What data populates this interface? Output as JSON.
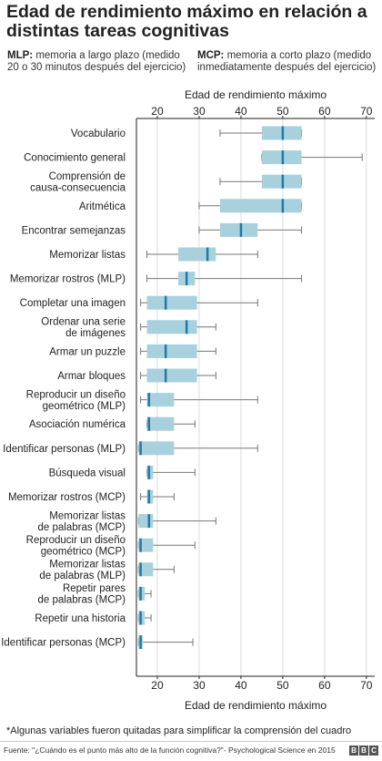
{
  "title": "Edad de rendimiento máximo en relación a distintas tareas cognitivas",
  "legend": {
    "mlp_key": "MLP:",
    "mlp_text": "memoria a largo plazo (medido 20 o 30 minutos después del ejercicio)",
    "mcp_key": "MCP:",
    "mcp_text": "memoria a corto plazo (medido inmediatamente después del ejercicio)"
  },
  "footnote": "*Algunas variables fueron quitadas para simplificar la comprensión del cuadro",
  "source": "Fuente: \"¿Cuándo es el punto más alto de la función cognitiva?\"- Psychological Science en 2015",
  "brand_letters": [
    "B",
    "B",
    "C"
  ],
  "colors": {
    "box_fill": "#a8d1dd",
    "median": "#1f7aa8",
    "whisker": "#777777",
    "grid": "#dddddd",
    "axis": "#222222"
  },
  "chart_data": {
    "type": "boxplot",
    "orientation": "horizontal",
    "xlabel": "Edad de rendimiento máximo",
    "xlim": [
      15,
      72
    ],
    "xticks": [
      20,
      30,
      40,
      50,
      60,
      70
    ],
    "xaxis_top": true,
    "xaxis_bottom": true,
    "grid": true,
    "categories": [
      {
        "label": [
          "Vocabulario"
        ],
        "whisker_low": 35,
        "q1": 45,
        "median": 50,
        "q3": 54.5,
        "whisker_high": 54.5
      },
      {
        "label": [
          "Conocimiento general"
        ],
        "whisker_low": 45,
        "q1": 45,
        "median": 50,
        "q3": 54.5,
        "whisker_high": 69
      },
      {
        "label": [
          "Comprensión de",
          "causa-consecuencia"
        ],
        "whisker_low": 35,
        "q1": 45,
        "median": 50,
        "q3": 54.5,
        "whisker_high": 54.5
      },
      {
        "label": [
          "Aritmética"
        ],
        "whisker_low": 30,
        "q1": 35,
        "median": 50,
        "q3": 54.5,
        "whisker_high": 54.5
      },
      {
        "label": [
          "Encontrar semejanzas"
        ],
        "whisker_low": 30,
        "q1": 35,
        "median": 40,
        "q3": 44,
        "whisker_high": 54.5
      },
      {
        "label": [
          "Memorizar listas"
        ],
        "whisker_low": 17.5,
        "q1": 25,
        "median": 32,
        "q3": 34,
        "whisker_high": 44
      },
      {
        "label": [
          "Memorizar rostros (MLP)"
        ],
        "whisker_low": 17.5,
        "q1": 25,
        "median": 27,
        "q3": 29,
        "whisker_high": 54.5
      },
      {
        "label": [
          "Completar una imagen"
        ],
        "whisker_low": 16,
        "q1": 17.5,
        "median": 22,
        "q3": 29.5,
        "whisker_high": 44
      },
      {
        "label": [
          "Ordenar una serie",
          "de imágenes"
        ],
        "whisker_low": 16,
        "q1": 17.5,
        "median": 27,
        "q3": 29.5,
        "whisker_high": 34
      },
      {
        "label": [
          "Armar un puzzle"
        ],
        "whisker_low": 16,
        "q1": 17.5,
        "median": 22,
        "q3": 29.5,
        "whisker_high": 34
      },
      {
        "label": [
          "Armar bloques"
        ],
        "whisker_low": 16,
        "q1": 17.5,
        "median": 22,
        "q3": 29.5,
        "whisker_high": 34
      },
      {
        "label": [
          "Reproducir un diseño",
          "geométrico (MLP)"
        ],
        "whisker_low": 16,
        "q1": 17.5,
        "median": 18,
        "q3": 24,
        "whisker_high": 44
      },
      {
        "label": [
          "Asociación numérica"
        ],
        "whisker_low": 17.5,
        "q1": 17.5,
        "median": 18,
        "q3": 24,
        "whisker_high": 29
      },
      {
        "label": [
          "Identificar personas (MLP)"
        ],
        "whisker_low": 15.5,
        "q1": 15.5,
        "median": 16,
        "q3": 24,
        "whisker_high": 44
      },
      {
        "label": [
          "Búsqueda visual"
        ],
        "whisker_low": 17.5,
        "q1": 17.5,
        "median": 18,
        "q3": 19,
        "whisker_high": 29
      },
      {
        "label": [
          "Memorizar rostros (MCP)"
        ],
        "whisker_low": 16,
        "q1": 17.5,
        "median": 18,
        "q3": 19,
        "whisker_high": 24
      },
      {
        "label": [
          "Memorizar listas",
          "de palabras (MCP)"
        ],
        "whisker_low": 15.5,
        "q1": 15.5,
        "median": 18,
        "q3": 19,
        "whisker_high": 34
      },
      {
        "label": [
          "Reproducir un diseño",
          "geométrico (MCP)"
        ],
        "whisker_low": 15.5,
        "q1": 15.5,
        "median": 16,
        "q3": 19,
        "whisker_high": 29
      },
      {
        "label": [
          "Memorizar listas",
          "de palabras (MLP)"
        ],
        "whisker_low": 15.5,
        "q1": 15.5,
        "median": 16,
        "q3": 19,
        "whisker_high": 24
      },
      {
        "label": [
          "Repetir pares",
          "de palabras (MCP)"
        ],
        "whisker_low": 15.5,
        "q1": 15.5,
        "median": 16,
        "q3": 17,
        "whisker_high": 18.5
      },
      {
        "label": [
          "Repetir una historia"
        ],
        "whisker_low": 15.5,
        "q1": 15.5,
        "median": 16,
        "q3": 17,
        "whisker_high": 18.5
      },
      {
        "label": [
          "Identificar personas (MCP)"
        ],
        "whisker_low": 15.5,
        "q1": 15.5,
        "median": 16,
        "q3": 16.5,
        "whisker_high": 28.5
      }
    ]
  }
}
